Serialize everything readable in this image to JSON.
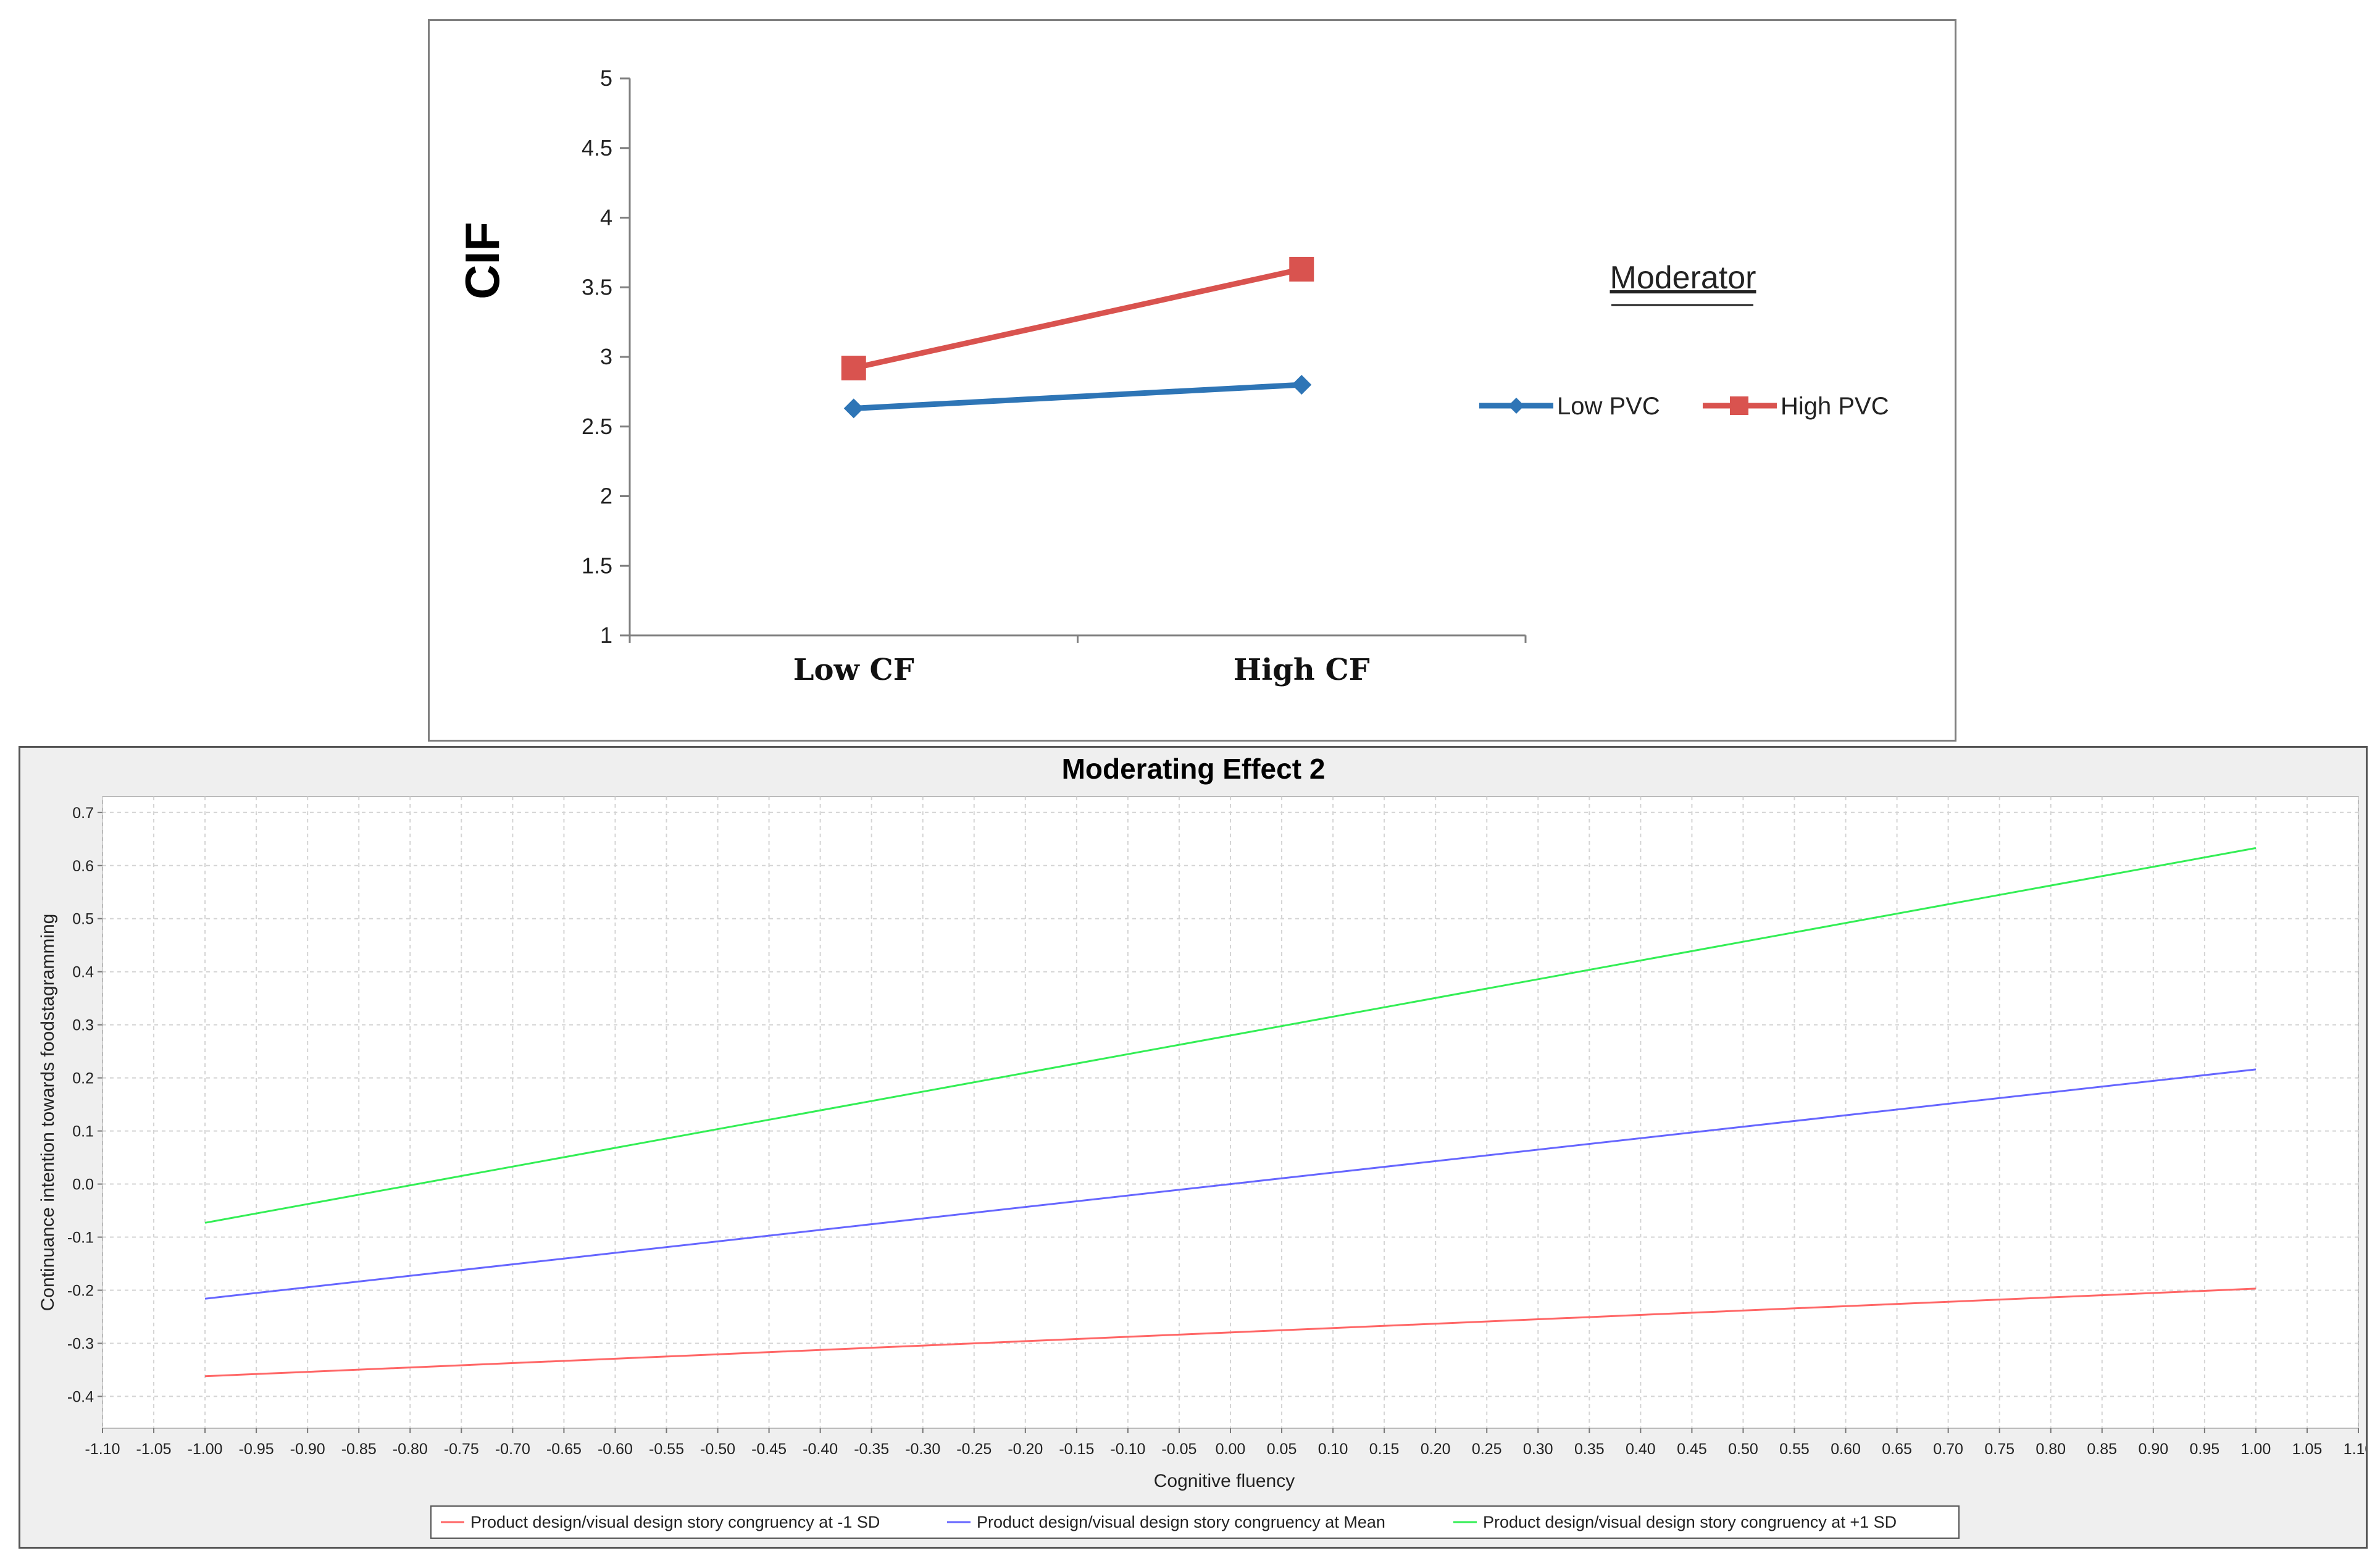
{
  "chart_data": [
    {
      "type": "line",
      "ylabel": "CIF",
      "ylim": [
        1,
        5
      ],
      "yticks": [
        "1",
        "1.5",
        "2",
        "2.5",
        "3",
        "3.5",
        "4",
        "4.5",
        "5"
      ],
      "categories": [
        "Low CF",
        "High CF"
      ],
      "legend_title": "Moderator",
      "legend_placement": "right",
      "series": [
        {
          "name": "Low PVC",
          "values": [
            2.63,
            2.8
          ],
          "color": "#2e75b6",
          "marker": "diamond"
        },
        {
          "name": "High PVC",
          "values": [
            2.92,
            3.63
          ],
          "color": "#d9534f",
          "marker": "square"
        }
      ],
      "grid": false
    },
    {
      "type": "line",
      "title": "Moderating Effect 2",
      "xlabel": "Cognitive fluency",
      "ylabel": "Continuance intention towards foodstagramming",
      "xlim": [
        -1.1,
        1.1
      ],
      "ylim": [
        -0.46,
        0.73
      ],
      "xticks": [
        "-1.10",
        "-1.05",
        "-1.00",
        "-0.95",
        "-0.90",
        "-0.85",
        "-0.80",
        "-0.75",
        "-0.70",
        "-0.65",
        "-0.60",
        "-0.55",
        "-0.50",
        "-0.45",
        "-0.40",
        "-0.35",
        "-0.30",
        "-0.25",
        "-0.20",
        "-0.15",
        "-0.10",
        "-0.05",
        "0.00",
        "0.05",
        "0.10",
        "0.15",
        "0.20",
        "0.25",
        "0.30",
        "0.35",
        "0.40",
        "0.45",
        "0.50",
        "0.55",
        "0.60",
        "0.65",
        "0.70",
        "0.75",
        "0.80",
        "0.85",
        "0.90",
        "0.95",
        "1.00",
        "1.05",
        "1.10"
      ],
      "yticks": [
        "-0.4",
        "-0.3",
        "-0.2",
        "-0.1",
        "0.0",
        "0.1",
        "0.2",
        "0.3",
        "0.4",
        "0.5",
        "0.6",
        "0.7"
      ],
      "legend_placement": "bottom",
      "grid": true,
      "series": [
        {
          "name": "Product design/visual design story congruency at -1 SD",
          "x": [
            -1.0,
            1.0
          ],
          "y": [
            -0.362,
            -0.197
          ],
          "color": "#ff6666"
        },
        {
          "name": "Product design/visual design story congruency at Mean",
          "x": [
            -1.0,
            1.0
          ],
          "y": [
            -0.216,
            0.216
          ],
          "color": "#6666ff"
        },
        {
          "name": "Product design/visual design story congruency at +1 SD",
          "x": [
            -1.0,
            1.0
          ],
          "y": [
            -0.073,
            0.633
          ],
          "color": "#33ee55"
        }
      ]
    }
  ]
}
